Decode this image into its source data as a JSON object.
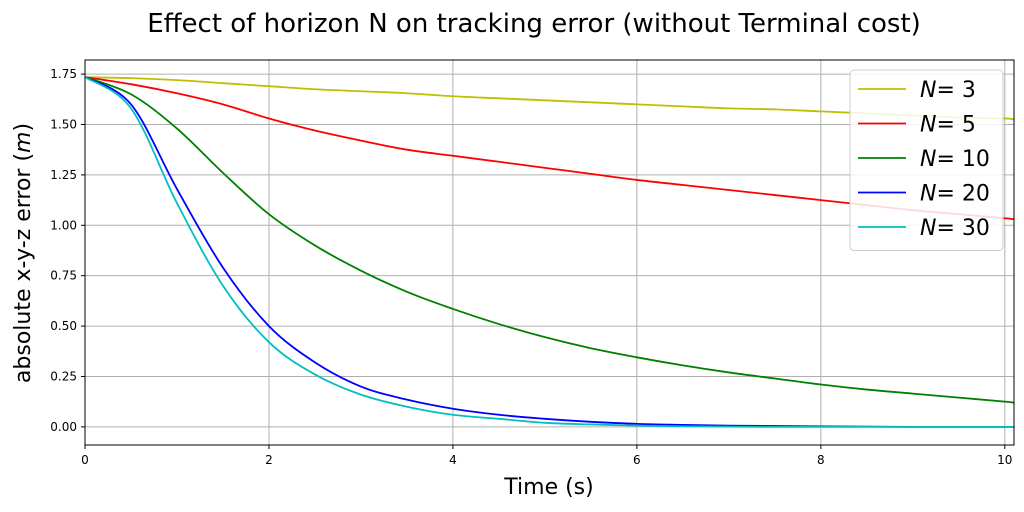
{
  "chart_data": {
    "type": "line",
    "title": "Effect of horizon N on tracking error (without Terminal cost)",
    "xlabel": "Time (s)",
    "ylabel": "absolute x-y-z error (m)",
    "ylabel_parts": [
      "absolute x-y-z error (",
      "m",
      ")"
    ],
    "xlim": [
      0,
      10.1
    ],
    "ylim": [
      -0.09,
      1.82
    ],
    "xticks": [
      0,
      2,
      4,
      6,
      8,
      10
    ],
    "xtick_labels": [
      "0",
      "2",
      "4",
      "6",
      "8",
      "10"
    ],
    "yticks": [
      0.0,
      0.25,
      0.5,
      0.75,
      1.0,
      1.25,
      1.5,
      1.75
    ],
    "ytick_labels": [
      "0.00",
      "0.25",
      "0.50",
      "0.75",
      "1.00",
      "1.25",
      "1.50",
      "1.75"
    ],
    "grid": true,
    "legend_position": "top-right",
    "x": [
      0,
      0.5,
      1,
      1.5,
      2,
      2.5,
      3,
      3.5,
      4,
      4.5,
      5,
      5.5,
      6,
      6.5,
      7,
      7.5,
      8,
      8.5,
      9,
      9.5,
      10,
      10.1
    ],
    "series": [
      {
        "name": "N = 3",
        "label_var": "N",
        "label_value": "= 3",
        "color": "#bfbf00",
        "values": [
          1.735,
          1.73,
          1.72,
          1.705,
          1.69,
          1.675,
          1.665,
          1.655,
          1.64,
          1.63,
          1.62,
          1.61,
          1.6,
          1.59,
          1.58,
          1.575,
          1.565,
          1.555,
          1.545,
          1.535,
          1.53,
          1.525
        ]
      },
      {
        "name": "N = 5",
        "label_var": "N",
        "label_value": "= 5",
        "color": "#ff0000",
        "values": [
          1.735,
          1.7,
          1.655,
          1.6,
          1.53,
          1.47,
          1.42,
          1.375,
          1.345,
          1.315,
          1.285,
          1.255,
          1.225,
          1.2,
          1.175,
          1.15,
          1.125,
          1.1,
          1.075,
          1.055,
          1.035,
          1.03
        ]
      },
      {
        "name": "N = 10",
        "label_var": "N",
        "label_value": "= 10",
        "color": "#008000",
        "values": [
          1.735,
          1.65,
          1.48,
          1.26,
          1.055,
          0.9,
          0.775,
          0.67,
          0.585,
          0.51,
          0.445,
          0.39,
          0.345,
          0.305,
          0.27,
          0.24,
          0.21,
          0.185,
          0.165,
          0.145,
          0.125,
          0.12
        ]
      },
      {
        "name": "N = 20",
        "label_var": "N",
        "label_value": "= 20",
        "color": "#0000ff",
        "values": [
          1.735,
          1.6,
          1.18,
          0.79,
          0.5,
          0.32,
          0.2,
          0.135,
          0.09,
          0.06,
          0.04,
          0.025,
          0.015,
          0.01,
          0.006,
          0.004,
          0.002,
          0.001,
          0.0,
          0.0,
          0.0,
          0.0
        ]
      },
      {
        "name": "N = 30",
        "label_var": "N",
        "label_value": "= 30",
        "color": "#00bfbf",
        "values": [
          1.735,
          1.58,
          1.11,
          0.7,
          0.42,
          0.26,
          0.16,
          0.1,
          0.06,
          0.04,
          0.02,
          0.012,
          0.006,
          0.003,
          0.001,
          0.0,
          0.0,
          0.0,
          0.0,
          0.0,
          0.0,
          0.0
        ]
      }
    ]
  }
}
